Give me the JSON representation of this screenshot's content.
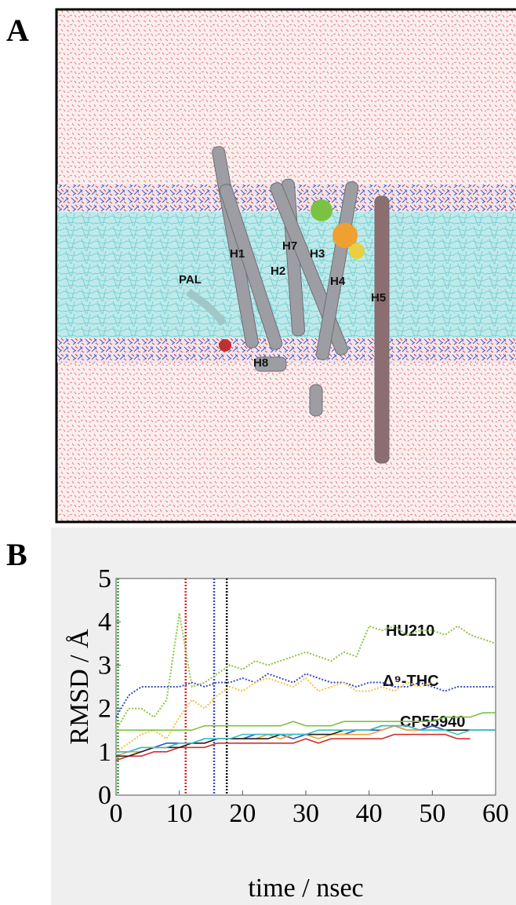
{
  "panel_a": {
    "label": "A",
    "helix_labels": [
      "H1",
      "H7",
      "H3",
      "H2",
      "H4",
      "H5",
      "PAL",
      "H8"
    ]
  },
  "panel_b_label": "B",
  "chart_data": {
    "type": "line",
    "ylabel": "RMSD / Å",
    "xlabel": "time / nsec",
    "x": [
      0,
      2,
      4,
      6,
      8,
      10,
      12,
      14,
      16,
      18,
      20,
      22,
      24,
      26,
      28,
      30,
      32,
      34,
      36,
      38,
      40,
      42,
      44,
      46,
      48,
      50,
      52,
      54,
      56,
      58,
      60
    ],
    "xlim": [
      0,
      60
    ],
    "ylim": [
      0,
      5
    ],
    "xticks": [
      0,
      10,
      20,
      30,
      40,
      50,
      60
    ],
    "yticks": [
      0,
      1,
      2,
      3,
      4,
      5
    ],
    "annotations": [
      "HU210",
      "Δ⁹-THC",
      "CP55940"
    ],
    "markers": [
      {
        "x": 0.3,
        "color": "#2ca02c"
      },
      {
        "x": 11,
        "color": "#d62728"
      },
      {
        "x": 15.5,
        "color": "#3b4cc0"
      },
      {
        "x": 17.5,
        "color": "#000000"
      }
    ],
    "series": [
      {
        "color": "#8cc63f",
        "dashed": true,
        "values": [
          1.5,
          2.0,
          2.0,
          1.8,
          2.2,
          4.2,
          2.5,
          2.6,
          2.8,
          3.0,
          2.9,
          3.1,
          3.0,
          3.1,
          3.2,
          3.3,
          3.2,
          3.1,
          3.3,
          3.2,
          3.9,
          3.8,
          3.9,
          3.7,
          3.8,
          3.8,
          3.7,
          3.9,
          3.7,
          3.6,
          3.5
        ]
      },
      {
        "color": "#3b4cc0",
        "dashed": true,
        "values": [
          1.8,
          2.3,
          2.5,
          2.5,
          2.5,
          2.5,
          2.6,
          2.5,
          2.6,
          2.6,
          2.7,
          2.6,
          2.8,
          2.7,
          2.6,
          2.8,
          2.7,
          2.6,
          2.6,
          2.5,
          2.6,
          2.6,
          2.5,
          2.5,
          2.6,
          2.5,
          2.4,
          2.5,
          2.5,
          2.5,
          2.5
        ]
      },
      {
        "color": "#f5c242",
        "dashed": true,
        "values": [
          1.0,
          1.2,
          1.4,
          1.5,
          1.3,
          1.8,
          2.2,
          2.0,
          2.3,
          2.5,
          2.4,
          2.6,
          2.7,
          2.6,
          2.5,
          2.7,
          2.4,
          2.5,
          2.6,
          2.4,
          2.4,
          2.5,
          2.4,
          2.6,
          2.5,
          2.6,
          null,
          null,
          null,
          null,
          null
        ]
      },
      {
        "color": "#7cc242",
        "dashed": false,
        "values": [
          1.5,
          1.5,
          1.5,
          1.5,
          1.5,
          1.5,
          1.5,
          1.6,
          1.6,
          1.6,
          1.6,
          1.6,
          1.6,
          1.6,
          1.7,
          1.6,
          1.6,
          1.6,
          1.7,
          1.7,
          1.7,
          1.7,
          1.7,
          1.7,
          1.7,
          1.7,
          1.8,
          1.8,
          1.8,
          1.9,
          1.9
        ]
      },
      {
        "color": "#2b55c8",
        "dashed": false,
        "values": [
          1.0,
          1.0,
          1.1,
          1.1,
          1.2,
          1.2,
          1.2,
          1.3,
          1.3,
          1.3,
          1.3,
          1.4,
          1.4,
          1.4,
          1.3,
          1.4,
          1.4,
          1.4,
          1.4,
          1.5,
          1.5,
          1.5,
          1.6,
          1.5,
          1.5,
          1.6,
          1.5,
          1.5,
          1.5,
          1.5,
          1.5
        ]
      },
      {
        "color": "#f0a030",
        "dashed": false,
        "values": [
          0.9,
          1.0,
          1.0,
          1.1,
          1.1,
          1.2,
          1.2,
          1.2,
          1.3,
          1.3,
          1.3,
          1.3,
          1.4,
          1.3,
          1.4,
          1.4,
          1.3,
          1.4,
          1.4,
          1.4,
          1.4,
          1.5,
          1.6,
          1.5,
          1.5,
          1.5,
          null,
          null,
          null,
          null,
          null
        ]
      },
      {
        "color": "#d0302a",
        "dashed": false,
        "values": [
          0.8,
          0.9,
          0.9,
          1.0,
          1.0,
          1.1,
          1.1,
          1.1,
          1.2,
          1.2,
          1.2,
          1.2,
          1.2,
          1.2,
          1.2,
          1.3,
          1.2,
          1.3,
          1.3,
          1.3,
          1.3,
          1.3,
          1.4,
          1.4,
          1.4,
          1.4,
          1.4,
          1.3,
          1.3,
          null,
          null
        ]
      },
      {
        "color": "#222222",
        "dashed": false,
        "values": [
          0.9,
          0.9,
          1.0,
          1.1,
          1.1,
          1.1,
          1.2,
          1.2,
          1.3,
          1.3,
          1.3,
          1.3,
          1.3,
          1.4,
          1.4,
          1.4,
          1.4,
          1.4,
          1.5,
          1.5,
          1.5,
          1.6,
          1.6,
          1.6,
          1.5,
          1.5,
          1.5,
          1.5,
          1.5,
          1.5,
          1.5
        ]
      },
      {
        "color": "#3cc0c8",
        "dashed": false,
        "values": [
          1.0,
          1.0,
          1.1,
          1.1,
          1.1,
          1.2,
          1.2,
          1.3,
          1.3,
          1.3,
          1.4,
          1.4,
          1.4,
          1.4,
          1.4,
          1.4,
          1.5,
          1.5,
          1.5,
          1.5,
          1.5,
          1.6,
          1.6,
          1.6,
          1.5,
          1.5,
          1.5,
          1.4,
          1.5,
          1.5,
          1.5
        ]
      }
    ]
  }
}
